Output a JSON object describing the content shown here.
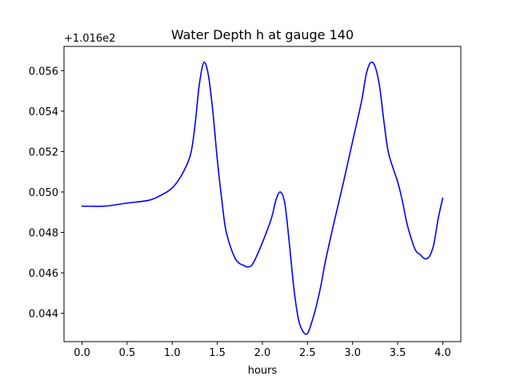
{
  "chart_data": {
    "type": "line",
    "title": "Water Depth h at gauge 140",
    "xlabel": "hours",
    "ylabel": "",
    "y_offset_label": "+1.016e2",
    "xlim": [
      -0.2,
      4.2
    ],
    "ylim": [
      0.0426,
      0.0572
    ],
    "grid": false,
    "x_ticks": [
      0.0,
      0.5,
      1.0,
      1.5,
      2.0,
      2.5,
      3.0,
      3.5,
      4.0
    ],
    "x_tick_labels": [
      "0.0",
      "0.5",
      "1.0",
      "1.5",
      "2.0",
      "2.5",
      "3.0",
      "3.5",
      "4.0"
    ],
    "y_ticks": [
      0.044,
      0.046,
      0.048,
      0.05,
      0.052,
      0.054,
      0.056
    ],
    "y_tick_labels": [
      "0.044",
      "0.046",
      "0.048",
      "0.050",
      "0.052",
      "0.054",
      "0.056"
    ],
    "series": [
      {
        "color": "#0000ff",
        "x": [
          0.0,
          0.25,
          0.5,
          0.75,
          0.9,
          1.0,
          1.1,
          1.2,
          1.25,
          1.3,
          1.35,
          1.4,
          1.45,
          1.5,
          1.55,
          1.6,
          1.7,
          1.8,
          1.85,
          1.9,
          2.0,
          2.1,
          2.15,
          2.2,
          2.25,
          2.3,
          2.35,
          2.4,
          2.45,
          2.5,
          2.55,
          2.6,
          2.65,
          2.7,
          2.8,
          2.9,
          3.0,
          3.1,
          3.15,
          3.2,
          3.25,
          3.3,
          3.35,
          3.4,
          3.5,
          3.55,
          3.6,
          3.65,
          3.7,
          3.75,
          3.8,
          3.85,
          3.9,
          3.95,
          4.0
        ],
        "y": [
          0.0493,
          0.0493,
          0.04945,
          0.0496,
          0.0499,
          0.0502,
          0.0508,
          0.0518,
          0.0532,
          0.0553,
          0.0564,
          0.0558,
          0.054,
          0.0516,
          0.0496,
          0.048,
          0.0467,
          0.04635,
          0.0463,
          0.0465,
          0.0475,
          0.0487,
          0.0496,
          0.05,
          0.0494,
          0.0474,
          0.0452,
          0.0437,
          0.0431,
          0.043,
          0.0436,
          0.0444,
          0.0454,
          0.0466,
          0.0486,
          0.0505,
          0.0525,
          0.0545,
          0.0558,
          0.0564,
          0.0562,
          0.0552,
          0.0534,
          0.0519,
          0.0505,
          0.0496,
          0.0485,
          0.0477,
          0.0471,
          0.0469,
          0.0467,
          0.0468,
          0.0474,
          0.0487,
          0.0497
        ]
      }
    ]
  }
}
